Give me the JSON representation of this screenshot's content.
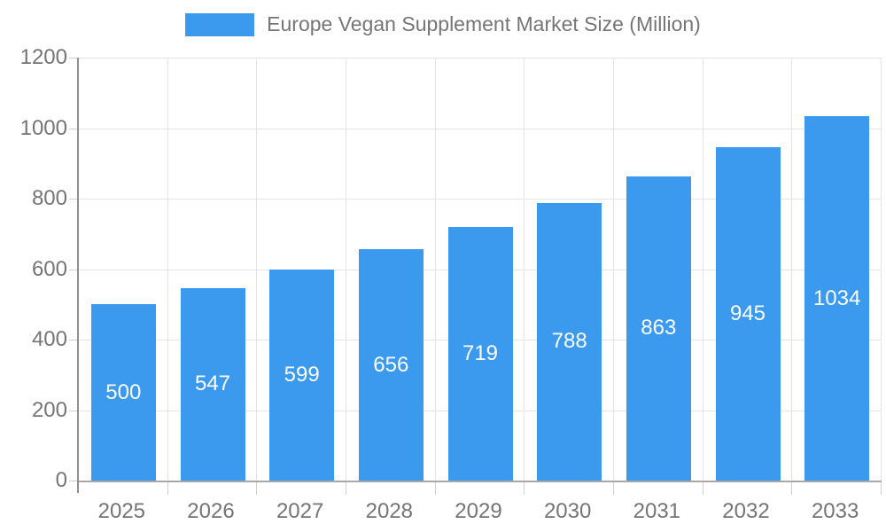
{
  "colors": {
    "bar": "#3b99ee",
    "grid": "#e4e4e4",
    "axis_line": "#8f8f8f",
    "baseline": "#a8a8a8",
    "tick": "#cfcfcf",
    "axis_text": "#757575",
    "value_label": "#ffffff",
    "background": "#ffffff"
  },
  "chart_data": {
    "type": "bar",
    "series_name": "Europe Vegan Supplement Market Size (Million)",
    "categories": [
      "2025",
      "2026",
      "2027",
      "2028",
      "2029",
      "2030",
      "2031",
      "2032",
      "2033"
    ],
    "values": [
      500,
      547,
      599,
      656,
      719,
      788,
      863,
      945,
      1034
    ],
    "title": "",
    "xlabel": "",
    "ylabel": "",
    "ylim": [
      0,
      1200
    ],
    "yticks": [
      0,
      200,
      400,
      600,
      800,
      1000,
      1200
    ],
    "grid": true,
    "legend_position": "top-center",
    "value_labels_position": "inside-center"
  }
}
